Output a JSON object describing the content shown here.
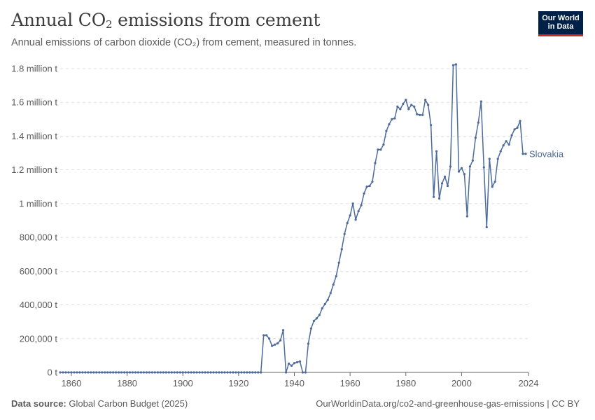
{
  "header": {
    "title_main": "Annual CO",
    "title_sub": "2",
    "title_rest": " emissions from cement",
    "subtitle": "Annual emissions of carbon dioxide (CO₂) from cement, measured in tonnes."
  },
  "logo": {
    "line1": "Our World",
    "line2": "in Data"
  },
  "footer": {
    "source_label": "Data source:",
    "source_value": " Global Carbon Budget (2025)",
    "url": "OurWorldinData.org/co2-and-greenhouse-gas-emissions | CC BY"
  },
  "colors": {
    "series": "#4c6a9c",
    "grid": "#dddddd",
    "axis": "#666666"
  },
  "chart_data": {
    "type": "line",
    "title": "Annual CO₂ emissions from cement",
    "xlabel": "",
    "ylabel": "",
    "xlim": [
      1856,
      2024
    ],
    "ylim": [
      0,
      1800000
    ],
    "y_ticks": [
      {
        "value": 0,
        "label": "0 t"
      },
      {
        "value": 200000,
        "label": "200,000 t"
      },
      {
        "value": 400000,
        "label": "400,000 t"
      },
      {
        "value": 600000,
        "label": "600,000 t"
      },
      {
        "value": 800000,
        "label": "800,000 t"
      },
      {
        "value": 1000000,
        "label": "1 million t"
      },
      {
        "value": 1200000,
        "label": "1.2 million t"
      },
      {
        "value": 1400000,
        "label": "1.4 million t"
      },
      {
        "value": 1600000,
        "label": "1.6 million t"
      },
      {
        "value": 1800000,
        "label": "1.8 million t"
      }
    ],
    "x_ticks": [
      {
        "value": 1860,
        "label": "1860"
      },
      {
        "value": 1880,
        "label": "1880"
      },
      {
        "value": 1900,
        "label": "1900"
      },
      {
        "value": 1920,
        "label": "1920"
      },
      {
        "value": 1940,
        "label": "1940"
      },
      {
        "value": 1960,
        "label": "1960"
      },
      {
        "value": 1980,
        "label": "1980"
      },
      {
        "value": 2000,
        "label": "2000"
      },
      {
        "value": 2024,
        "label": "2024"
      }
    ],
    "series": [
      {
        "name": "Slovakia",
        "zero_from": 1856,
        "zero_to": 1928,
        "points": [
          [
            1929,
            220000
          ],
          [
            1930,
            220000
          ],
          [
            1931,
            200000
          ],
          [
            1932,
            157000
          ],
          [
            1933,
            165000
          ],
          [
            1934,
            172000
          ],
          [
            1935,
            190000
          ],
          [
            1936,
            250000
          ],
          [
            1937,
            0
          ],
          [
            1938,
            52000
          ],
          [
            1939,
            40000
          ],
          [
            1940,
            55000
          ],
          [
            1941,
            60000
          ],
          [
            1942,
            65000
          ],
          [
            1943,
            0
          ],
          [
            1944,
            0
          ],
          [
            1945,
            170000
          ],
          [
            1946,
            260000
          ],
          [
            1947,
            305000
          ],
          [
            1948,
            320000
          ],
          [
            1949,
            340000
          ],
          [
            1950,
            380000
          ],
          [
            1951,
            405000
          ],
          [
            1952,
            430000
          ],
          [
            1953,
            470000
          ],
          [
            1954,
            520000
          ],
          [
            1955,
            570000
          ],
          [
            1956,
            650000
          ],
          [
            1957,
            730000
          ],
          [
            1958,
            820000
          ],
          [
            1959,
            885000
          ],
          [
            1960,
            930000
          ],
          [
            1961,
            1000000
          ],
          [
            1962,
            905000
          ],
          [
            1963,
            955000
          ],
          [
            1964,
            990000
          ],
          [
            1965,
            1060000
          ],
          [
            1966,
            1100000
          ],
          [
            1967,
            1105000
          ],
          [
            1968,
            1130000
          ],
          [
            1969,
            1240000
          ],
          [
            1970,
            1320000
          ],
          [
            1971,
            1320000
          ],
          [
            1972,
            1350000
          ],
          [
            1973,
            1430000
          ],
          [
            1974,
            1470000
          ],
          [
            1975,
            1500000
          ],
          [
            1976,
            1505000
          ],
          [
            1977,
            1575000
          ],
          [
            1978,
            1560000
          ],
          [
            1979,
            1590000
          ],
          [
            1980,
            1615000
          ],
          [
            1981,
            1560000
          ],
          [
            1982,
            1585000
          ],
          [
            1983,
            1575000
          ],
          [
            1984,
            1530000
          ],
          [
            1985,
            1525000
          ],
          [
            1986,
            1525000
          ],
          [
            1987,
            1615000
          ],
          [
            1988,
            1585000
          ],
          [
            1989,
            1465000
          ],
          [
            1990,
            1040000
          ],
          [
            1991,
            1310000
          ],
          [
            1992,
            1030000
          ],
          [
            1993,
            1120000
          ],
          [
            1994,
            1160000
          ],
          [
            1995,
            1105000
          ],
          [
            1996,
            1220000
          ],
          [
            1997,
            1820000
          ],
          [
            1998,
            1825000
          ],
          [
            1999,
            1190000
          ],
          [
            2000,
            1210000
          ],
          [
            2001,
            1175000
          ],
          [
            2002,
            925000
          ],
          [
            2003,
            1220000
          ],
          [
            2004,
            1255000
          ],
          [
            2005,
            1390000
          ],
          [
            2006,
            1480000
          ],
          [
            2007,
            1605000
          ],
          [
            2008,
            1215000
          ],
          [
            2009,
            860000
          ],
          [
            2010,
            1265000
          ],
          [
            2011,
            1100000
          ],
          [
            2012,
            1130000
          ],
          [
            2013,
            1265000
          ],
          [
            2014,
            1310000
          ],
          [
            2015,
            1345000
          ],
          [
            2016,
            1370000
          ],
          [
            2017,
            1350000
          ],
          [
            2018,
            1405000
          ],
          [
            2019,
            1440000
          ],
          [
            2020,
            1450000
          ],
          [
            2021,
            1490000
          ],
          [
            2022,
            1295000
          ],
          [
            2023,
            1295000
          ]
        ]
      }
    ],
    "series_label": "Slovakia"
  }
}
